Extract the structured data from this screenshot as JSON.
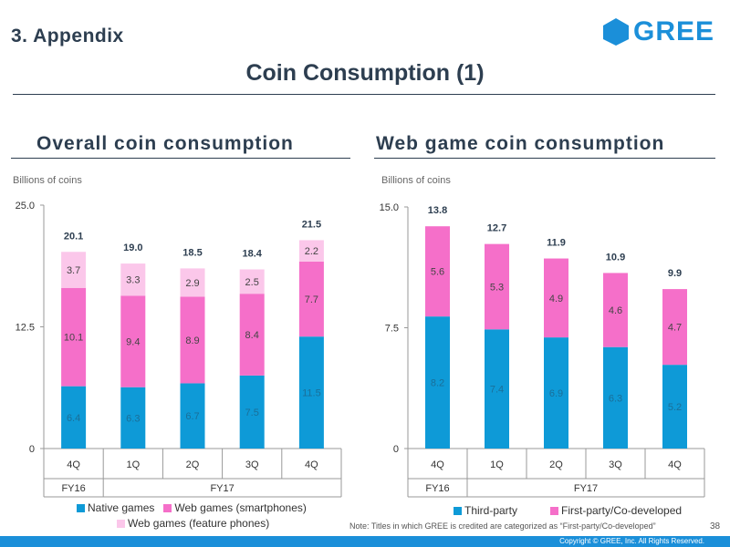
{
  "header": {
    "section": "3. Appendix",
    "logo_text": "GREE",
    "page_title": "Coin Consumption (1)"
  },
  "colors": {
    "native": "#0e9ad7",
    "web_sp": "#f56fc9",
    "web_fp": "#fbc7ea",
    "third_party": "#0e9ad7",
    "first_party": "#f56fc9",
    "brand": "#1b8fd9"
  },
  "chart_data": [
    {
      "type": "bar",
      "stacked": true,
      "title": "Overall coin consumption",
      "ylabel": "Billions of coins",
      "ylim": [
        0,
        25
      ],
      "yticks": [
        "0",
        "12.5",
        "25.0"
      ],
      "categories": [
        "4Q",
        "1Q",
        "2Q",
        "3Q",
        "4Q"
      ],
      "fiscal_years": [
        {
          "label": "FY16",
          "span": [
            0,
            0
          ]
        },
        {
          "label": "FY17",
          "span": [
            1,
            4
          ]
        }
      ],
      "series": [
        {
          "name": "Native games",
          "values": [
            6.4,
            6.3,
            6.7,
            7.5,
            11.5
          ]
        },
        {
          "name": "Web games (smartphones)",
          "values": [
            10.1,
            9.4,
            8.9,
            8.4,
            7.7
          ]
        },
        {
          "name": "Web games (feature phones)",
          "values": [
            3.7,
            3.3,
            2.9,
            2.5,
            2.2
          ]
        }
      ],
      "totals": [
        20.1,
        19.0,
        18.5,
        18.4,
        21.5
      ]
    },
    {
      "type": "bar",
      "stacked": true,
      "title": "Web game coin consumption",
      "ylabel": "Billions of coins",
      "ylim": [
        0,
        15
      ],
      "yticks": [
        "0",
        "7.5",
        "15.0"
      ],
      "categories": [
        "4Q",
        "1Q",
        "2Q",
        "3Q",
        "4Q"
      ],
      "fiscal_years": [
        {
          "label": "FY16",
          "span": [
            0,
            0
          ]
        },
        {
          "label": "FY17",
          "span": [
            1,
            4
          ]
        }
      ],
      "series": [
        {
          "name": "Third-party",
          "values": [
            8.2,
            7.4,
            6.9,
            6.3,
            5.2
          ]
        },
        {
          "name": "First-party/Co-developed",
          "values": [
            5.6,
            5.3,
            4.9,
            4.6,
            4.7
          ]
        }
      ],
      "totals": [
        13.8,
        12.7,
        11.9,
        10.9,
        9.9
      ]
    }
  ],
  "legend_left": [
    "Native games",
    "Web games (smartphones)",
    "Web games (feature phones)"
  ],
  "legend_right": [
    "Third-party",
    "First-party/Co-developed"
  ],
  "footer": {
    "note": "Note: Titles in which GREE is credited are categorized as “First-party/Co-developed”",
    "page": "38",
    "copyright": "Copyright © GREE, Inc. All Rights Reserved."
  }
}
